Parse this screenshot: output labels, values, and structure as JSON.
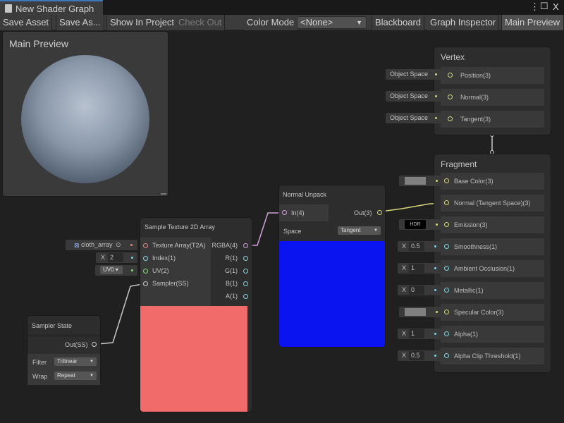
{
  "window": {
    "tab_title": "New Shader Graph",
    "controls": [
      "⋮",
      "☐",
      "X"
    ]
  },
  "toolbar": {
    "save_asset": "Save Asset",
    "save_as": "Save As...",
    "show_in_project": "Show In Project",
    "check_out": "Check Out",
    "color_mode_label": "Color Mode",
    "color_mode_value": "<None>",
    "blackboard": "Blackboard",
    "graph_inspector": "Graph Inspector",
    "main_preview": "Main Preview"
  },
  "main_preview": {
    "title": "Main Preview"
  },
  "vertex": {
    "title": "Vertex",
    "slots": [
      {
        "label": "Position(3)",
        "input": "Object Space"
      },
      {
        "label": "Normal(3)",
        "input": "Object Space"
      },
      {
        "label": "Tangent(3)",
        "input": "Object Space"
      }
    ]
  },
  "fragment": {
    "title": "Fragment",
    "slots": [
      {
        "label": "Base Color(3)",
        "type": "color",
        "color": "#808080"
      },
      {
        "label": "Normal (Tangent Space)(3)",
        "type": "connected"
      },
      {
        "label": "Emission(3)",
        "type": "hdr",
        "value": "HDR"
      },
      {
        "label": "Smoothness(1)",
        "type": "float",
        "value": "0.5"
      },
      {
        "label": "Ambient Occlusion(1)",
        "type": "float",
        "value": "1"
      },
      {
        "label": "Metallic(1)",
        "type": "float",
        "value": "0"
      },
      {
        "label": "Specular Color(3)",
        "type": "color",
        "color": "#808080"
      },
      {
        "label": "Alpha(1)",
        "type": "float",
        "value": "1"
      },
      {
        "label": "Alpha Clip Threshold(1)",
        "type": "float",
        "value": "0.5"
      }
    ],
    "x_label": "X"
  },
  "normal_unpack": {
    "title": "Normal Unpack",
    "input": "In(4)",
    "output": "Out(3)",
    "space_label": "Space",
    "space_value": "Tangent",
    "preview_color": "#0a14f0"
  },
  "sample_texture": {
    "title": "Sample Texture 2D Array",
    "inputs": [
      "Texture Array(T2A)",
      "Index(1)",
      "UV(2)",
      "Sampler(SS)"
    ],
    "outputs": [
      "RGBA(4)",
      "R(1)",
      "G(1)",
      "B(1)",
      "A(1)"
    ],
    "preview_color": "#f26b6b",
    "texture_value": "cloth_array",
    "index_x": "X",
    "index_value": "2",
    "uv_value": "UV0"
  },
  "sampler_state": {
    "title": "Sampler State",
    "output": "Out(SS)",
    "filter_label": "Filter",
    "filter_value": "Trilinear",
    "wrap_label": "Wrap",
    "wrap_value": "Repeat"
  }
}
